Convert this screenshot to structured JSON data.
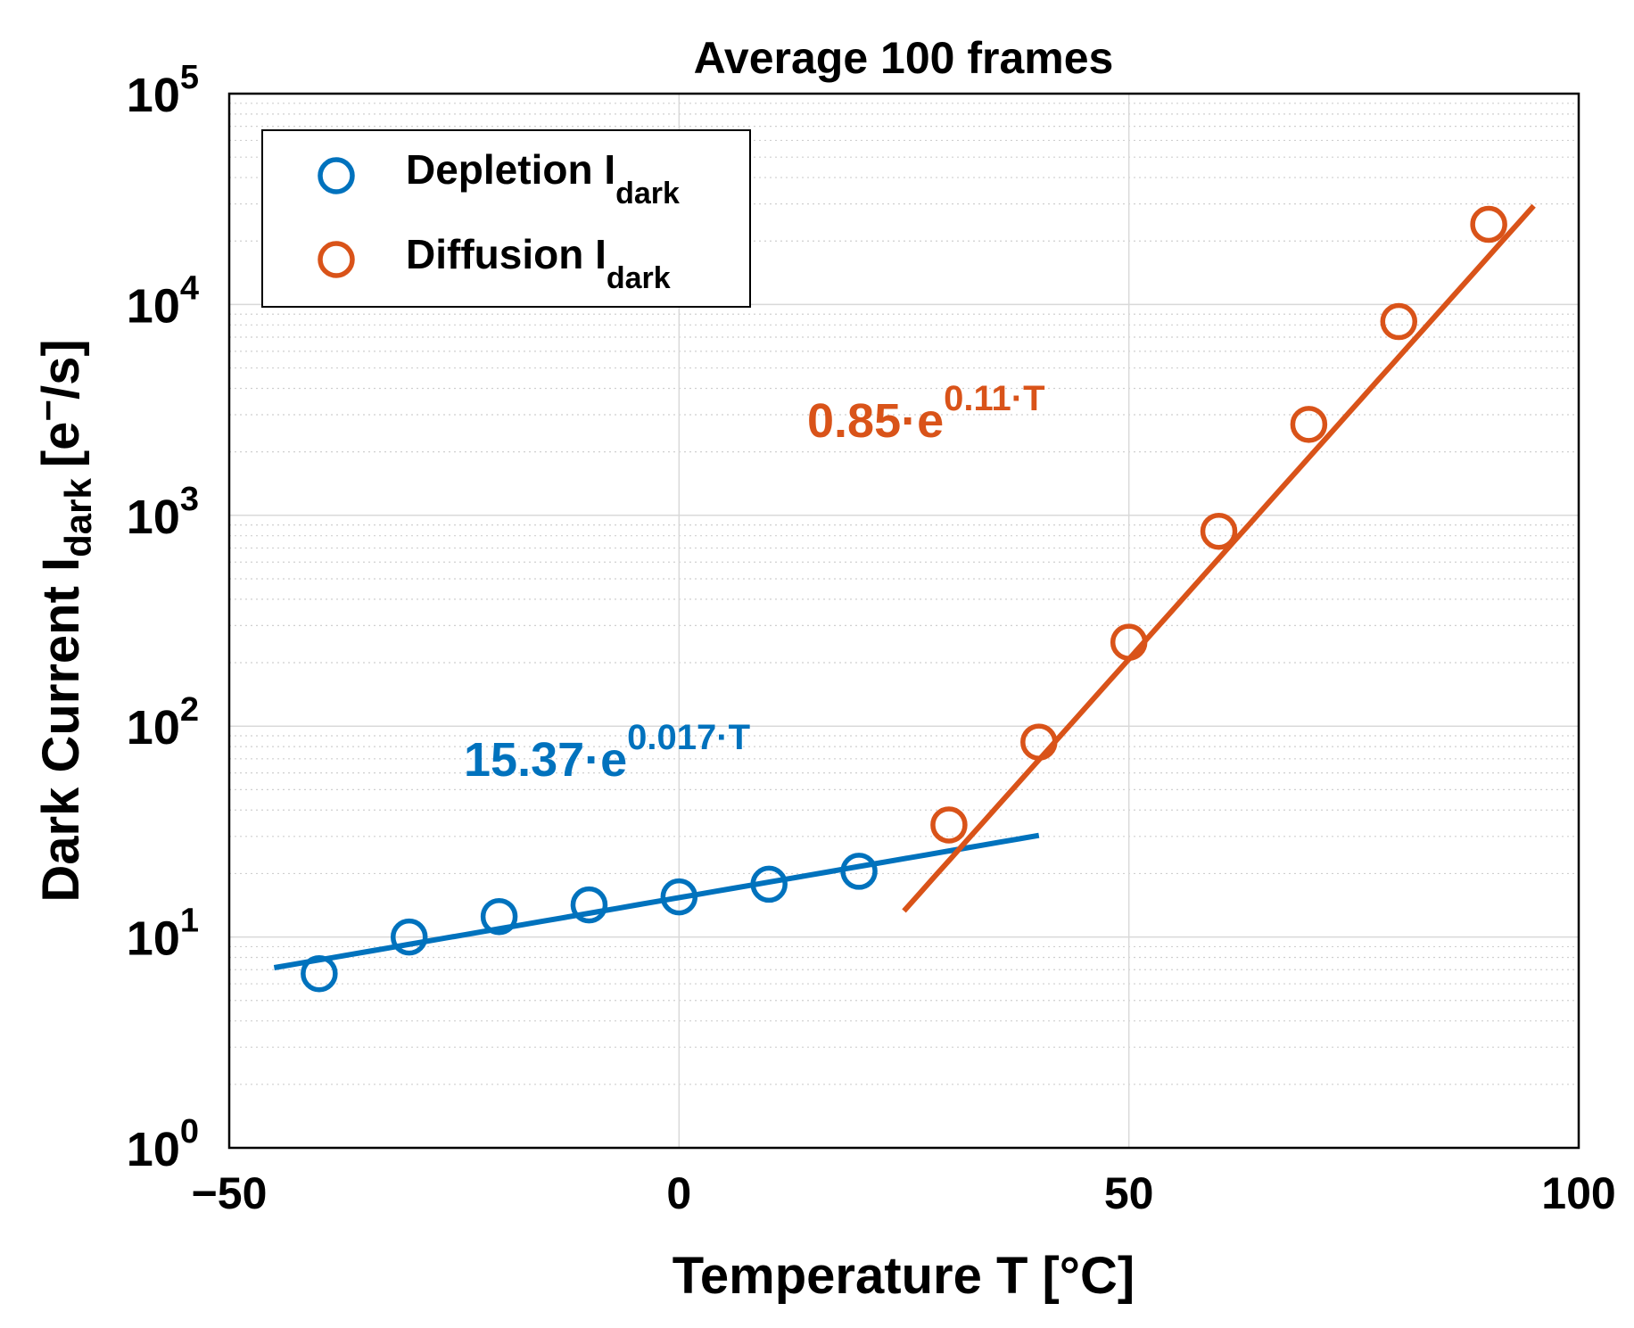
{
  "chart_data": {
    "type": "scatter",
    "title": "Average 100 frames",
    "xlabel": "Temperature T [°C]",
    "ylabel": {
      "main": "Dark Current I",
      "sub": "dark",
      "units_pre": "[e",
      "units_sup": "−",
      "units_post": "/s]"
    },
    "xscale": "linear",
    "yscale": "log",
    "xlim": [
      -50,
      100
    ],
    "ylim": [
      1,
      100000
    ],
    "xticks": [
      -50,
      0,
      50,
      100
    ],
    "xtick_labels": [
      "−50",
      "0",
      "50",
      "100"
    ],
    "yticks": [
      1,
      10,
      100,
      1000,
      10000,
      100000
    ],
    "ytick_base": "10",
    "ytick_exponents": [
      "0",
      "1",
      "2",
      "3",
      "4",
      "5"
    ],
    "grid": true,
    "legend_position": "top-left",
    "series": [
      {
        "name": "Depletion I",
        "name_sub": "dark",
        "color": "#0072BD",
        "marker": "circle",
        "x": [
          -40,
          -30,
          -20,
          -10,
          0,
          10,
          20
        ],
        "y": [
          6.7,
          10,
          12.5,
          14.2,
          15.5,
          17.8,
          20.5
        ],
        "fit": {
          "x_range": [
            -45,
            40
          ],
          "a": 15.37,
          "b": 0.017,
          "label_main": "15.37·e",
          "label_sup": "0.017·T"
        }
      },
      {
        "name": "Diffusion I",
        "name_sub": "dark",
        "color": "#D95319",
        "marker": "circle",
        "x": [
          30,
          40,
          50,
          60,
          70,
          80,
          90
        ],
        "y": [
          34,
          84,
          250,
          840,
          2700,
          8300,
          24000
        ],
        "fit": {
          "x_range": [
            25,
            95
          ],
          "a": 0.85,
          "b": 0.11,
          "label_main": "0.85·e",
          "label_sup": "0.11·T"
        }
      }
    ]
  }
}
